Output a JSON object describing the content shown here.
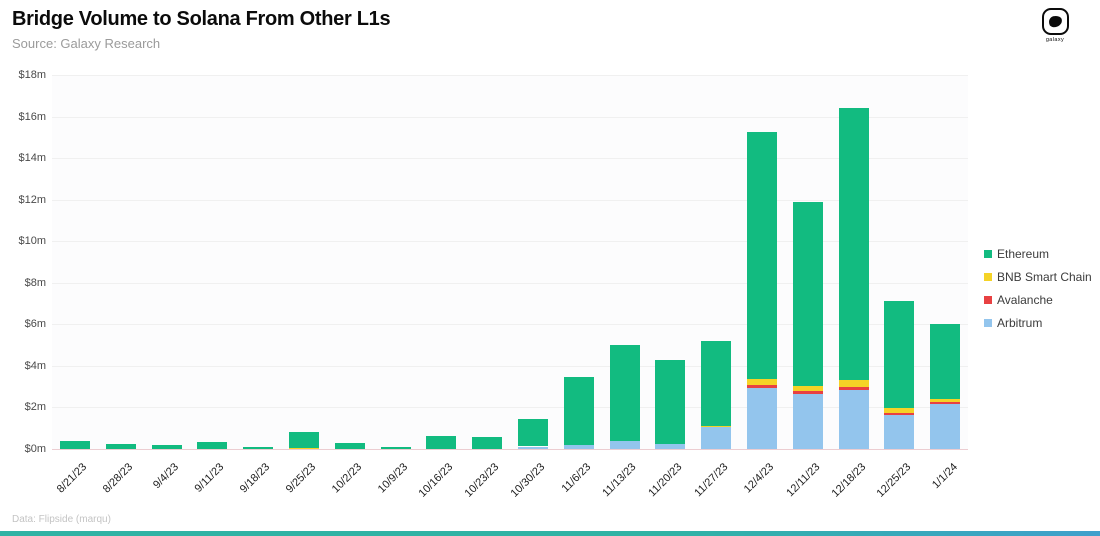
{
  "header": {
    "title": "Bridge Volume to Solana From Other L1s",
    "subtitle": "Source: Galaxy Research"
  },
  "footer": {
    "note": "Data: Flipside (marqu)"
  },
  "logo": {
    "label": "galaxy"
  },
  "colors": {
    "ethereum": "#12BB80",
    "bnb": "#F5D326",
    "avalanche": "#E84142",
    "arbitrum": "#93C5ED",
    "baseline": "#ECCDD1",
    "gridline": "#F0F0F0"
  },
  "chart_data": {
    "type": "bar",
    "stacked": true,
    "title": "Bridge Volume to Solana From Other L1s",
    "xlabel": "",
    "ylabel": "",
    "ylim": [
      0,
      18
    ],
    "ytick_step": 2,
    "yticks": [
      "$0m",
      "$2m",
      "$4m",
      "$6m",
      "$8m",
      "$10m",
      "$12m",
      "$14m",
      "$16m",
      "$18m"
    ],
    "grid": "horizontal",
    "legend_position": "right",
    "categories": [
      "8/21/23",
      "8/28/23",
      "9/4/23",
      "9/11/23",
      "9/18/23",
      "9/25/23",
      "10/2/23",
      "10/9/23",
      "10/16/23",
      "10/23/23",
      "10/30/23",
      "11/6/23",
      "11/13/23",
      "11/20/23",
      "11/27/23",
      "12/4/23",
      "12/11/23",
      "12/18/23",
      "12/25/23",
      "1/1/24"
    ],
    "stack_order_bottom_to_top": [
      "Arbitrum",
      "Avalanche",
      "BNB Smart Chain",
      "Ethereum"
    ],
    "series": [
      {
        "name": "Ethereum",
        "color": "#12BB80",
        "values": [
          0.37,
          0.22,
          0.17,
          0.34,
          0.08,
          0.76,
          0.31,
          0.11,
          0.63,
          0.56,
          1.33,
          3.27,
          4.62,
          4.05,
          4.07,
          11.9,
          8.85,
          13.1,
          5.13,
          3.6
        ]
      },
      {
        "name": "BNB Smart Chain",
        "color": "#F5D326",
        "values": [
          0,
          0,
          0,
          0,
          0,
          0.04,
          0,
          0,
          0,
          0,
          0,
          0,
          0,
          0,
          0.08,
          0.25,
          0.25,
          0.3,
          0.22,
          0.15
        ]
      },
      {
        "name": "Avalanche",
        "color": "#E84142",
        "values": [
          0,
          0,
          0,
          0,
          0,
          0,
          0,
          0,
          0,
          0,
          0,
          0,
          0,
          0,
          0,
          0.15,
          0.15,
          0.15,
          0.1,
          0.1
        ]
      },
      {
        "name": "Arbitrum",
        "color": "#93C5ED",
        "values": [
          0,
          0,
          0,
          0,
          0,
          0,
          0,
          0,
          0,
          0,
          0.12,
          0.18,
          0.38,
          0.25,
          1.05,
          2.95,
          2.65,
          2.85,
          1.65,
          2.15
        ]
      }
    ]
  }
}
